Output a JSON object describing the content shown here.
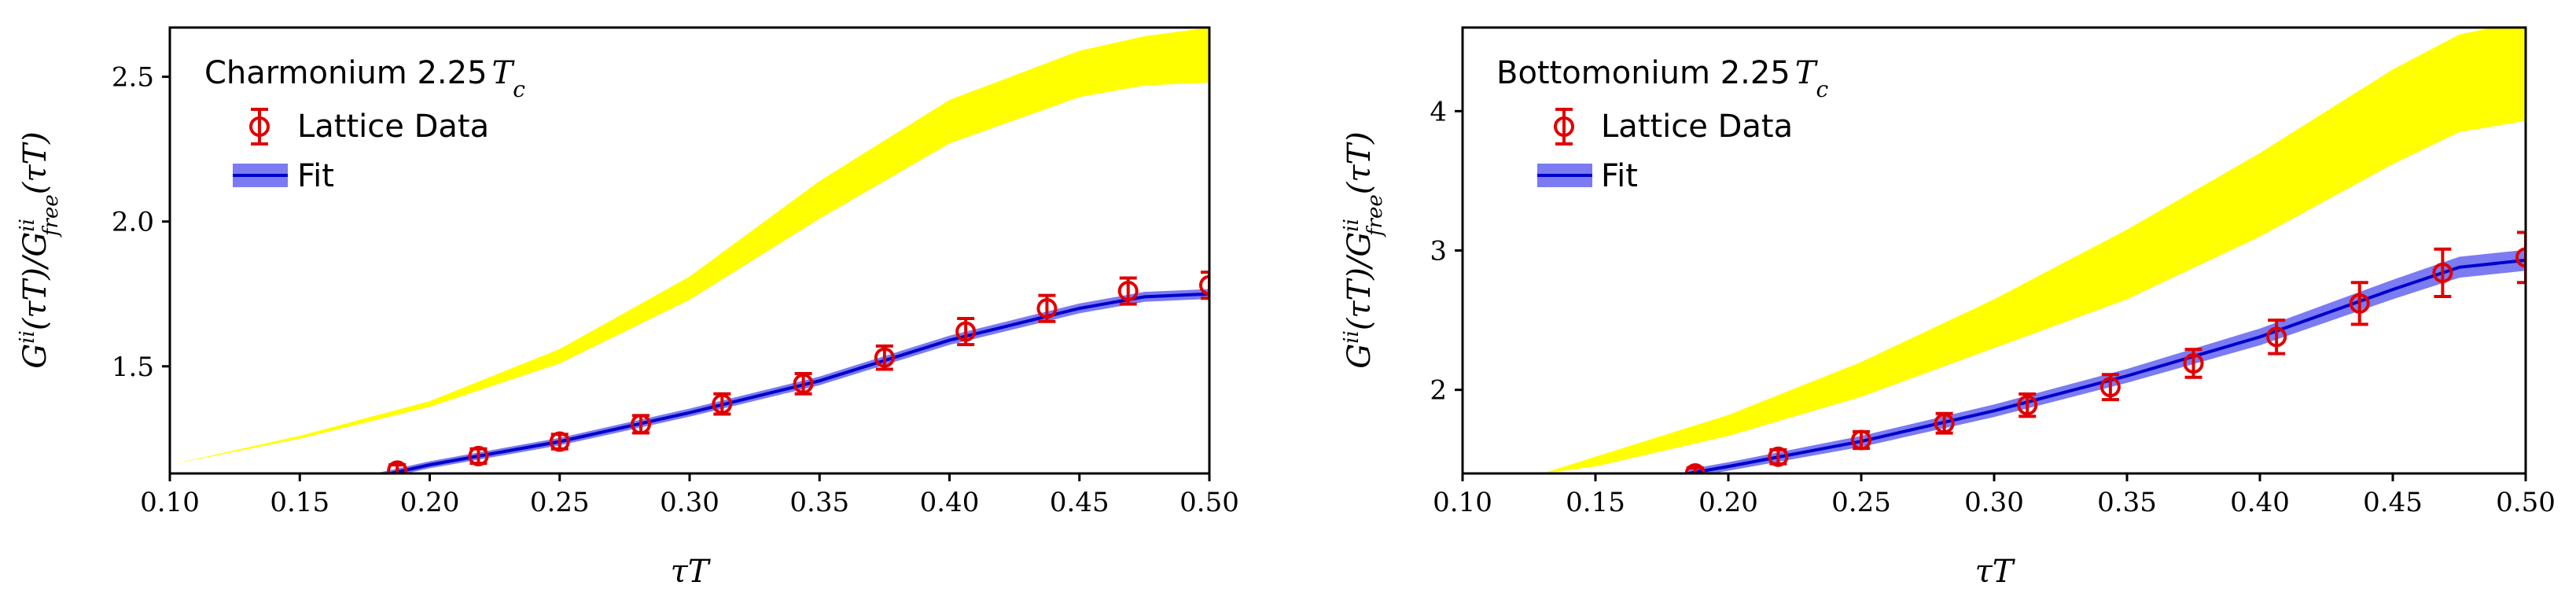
{
  "chart_data": [
    {
      "type": "line",
      "title": "Charmonium 2.25",
      "title_suffix": "T",
      "title_sub": "c",
      "xlabel": "τT",
      "ylabel": "G^{ii}(τT)/G^{ii}_{free}(τT)",
      "xlim": [
        0.1,
        0.5
      ],
      "ylim": [
        1.13,
        2.67
      ],
      "x_ticks": [
        "0.10",
        "0.15",
        "0.20",
        "0.25",
        "0.30",
        "0.35",
        "0.40",
        "0.45",
        "0.50"
      ],
      "y_ticks": [
        "1.5",
        "2.0",
        "2.5"
      ],
      "legend_position": "top-left",
      "legend": [
        {
          "label": "Lattice Data",
          "marker": "circle-errorbar",
          "color": "#e00000"
        },
        {
          "label": "Fit",
          "marker": "line-band",
          "color": "#0000cc",
          "band_color": "#7b7bf2"
        }
      ],
      "yellow_band": {
        "color": "#ffff00",
        "x": [
          0.1,
          0.15,
          0.2,
          0.25,
          0.3,
          0.35,
          0.4,
          0.45,
          0.475,
          0.5
        ],
        "lower": [
          1.16,
          1.25,
          1.36,
          1.51,
          1.73,
          2.01,
          2.27,
          2.43,
          2.47,
          2.48
        ],
        "upper": [
          1.16,
          1.26,
          1.38,
          1.56,
          1.81,
          2.14,
          2.42,
          2.59,
          2.64,
          2.67
        ]
      },
      "fit": {
        "name": "Fit",
        "x": [
          0.18,
          0.2,
          0.25,
          0.3,
          0.35,
          0.4,
          0.45,
          0.475,
          0.5
        ],
        "y": [
          1.12,
          1.16,
          1.24,
          1.34,
          1.45,
          1.59,
          1.7,
          1.74,
          1.75
        ],
        "band_halfwidth": [
          0.012,
          0.012,
          0.013,
          0.014,
          0.015,
          0.016,
          0.017,
          0.017,
          0.017
        ]
      },
      "lattice_data": {
        "name": "Lattice Data",
        "x": [
          0.1875,
          0.21875,
          0.25,
          0.28125,
          0.3125,
          0.34375,
          0.375,
          0.40625,
          0.4375,
          0.46875,
          0.5
        ],
        "y": [
          1.14,
          1.19,
          1.24,
          1.3,
          1.37,
          1.44,
          1.53,
          1.62,
          1.7,
          1.76,
          1.78
        ],
        "err": [
          0.02,
          0.025,
          0.025,
          0.03,
          0.035,
          0.035,
          0.04,
          0.045,
          0.045,
          0.045,
          0.045
        ]
      }
    },
    {
      "type": "line",
      "title": "Bottomonium 2.25",
      "title_suffix": "T",
      "title_sub": "c",
      "xlabel": "τT",
      "ylabel": "G^{ii}(τT)/G^{ii}_{free}(τT)",
      "xlim": [
        0.1,
        0.5
      ],
      "ylim": [
        1.4,
        4.6
      ],
      "x_ticks": [
        "0.10",
        "0.15",
        "0.20",
        "0.25",
        "0.30",
        "0.35",
        "0.40",
        "0.45",
        "0.50"
      ],
      "y_ticks": [
        "2",
        "3",
        "4"
      ],
      "legend_position": "top-left",
      "legend": [
        {
          "label": "Lattice Data",
          "marker": "circle-errorbar",
          "color": "#e00000"
        },
        {
          "label": "Fit",
          "marker": "line-band",
          "color": "#0000cc",
          "band_color": "#7b7bf2"
        }
      ],
      "yellow_band": {
        "color": "#ffff00",
        "x": [
          0.13,
          0.15,
          0.2,
          0.25,
          0.3,
          0.35,
          0.4,
          0.45,
          0.475,
          0.5
        ],
        "lower": [
          1.4,
          1.45,
          1.67,
          1.95,
          2.3,
          2.65,
          3.1,
          3.62,
          3.85,
          3.93
        ],
        "upper": [
          1.4,
          1.52,
          1.82,
          2.2,
          2.65,
          3.15,
          3.7,
          4.3,
          4.55,
          4.65
        ]
      },
      "fit": {
        "name": "Fit",
        "x": [
          0.185,
          0.2,
          0.25,
          0.3,
          0.35,
          0.4,
          0.45,
          0.475,
          0.5
        ],
        "y": [
          1.4,
          1.45,
          1.63,
          1.85,
          2.1,
          2.38,
          2.72,
          2.88,
          2.93
        ],
        "band_halfwidth": [
          0.03,
          0.03,
          0.04,
          0.045,
          0.05,
          0.06,
          0.07,
          0.075,
          0.075
        ]
      },
      "lattice_data": {
        "name": "Lattice Data",
        "x": [
          0.1875,
          0.21875,
          0.25,
          0.28125,
          0.3125,
          0.34375,
          0.375,
          0.40625,
          0.4375,
          0.46875,
          0.5
        ],
        "y": [
          1.4,
          1.52,
          1.64,
          1.76,
          1.89,
          2.02,
          2.19,
          2.38,
          2.62,
          2.84,
          2.95
        ],
        "err": [
          0.04,
          0.05,
          0.06,
          0.07,
          0.08,
          0.09,
          0.1,
          0.12,
          0.15,
          0.17,
          0.18
        ]
      }
    }
  ]
}
